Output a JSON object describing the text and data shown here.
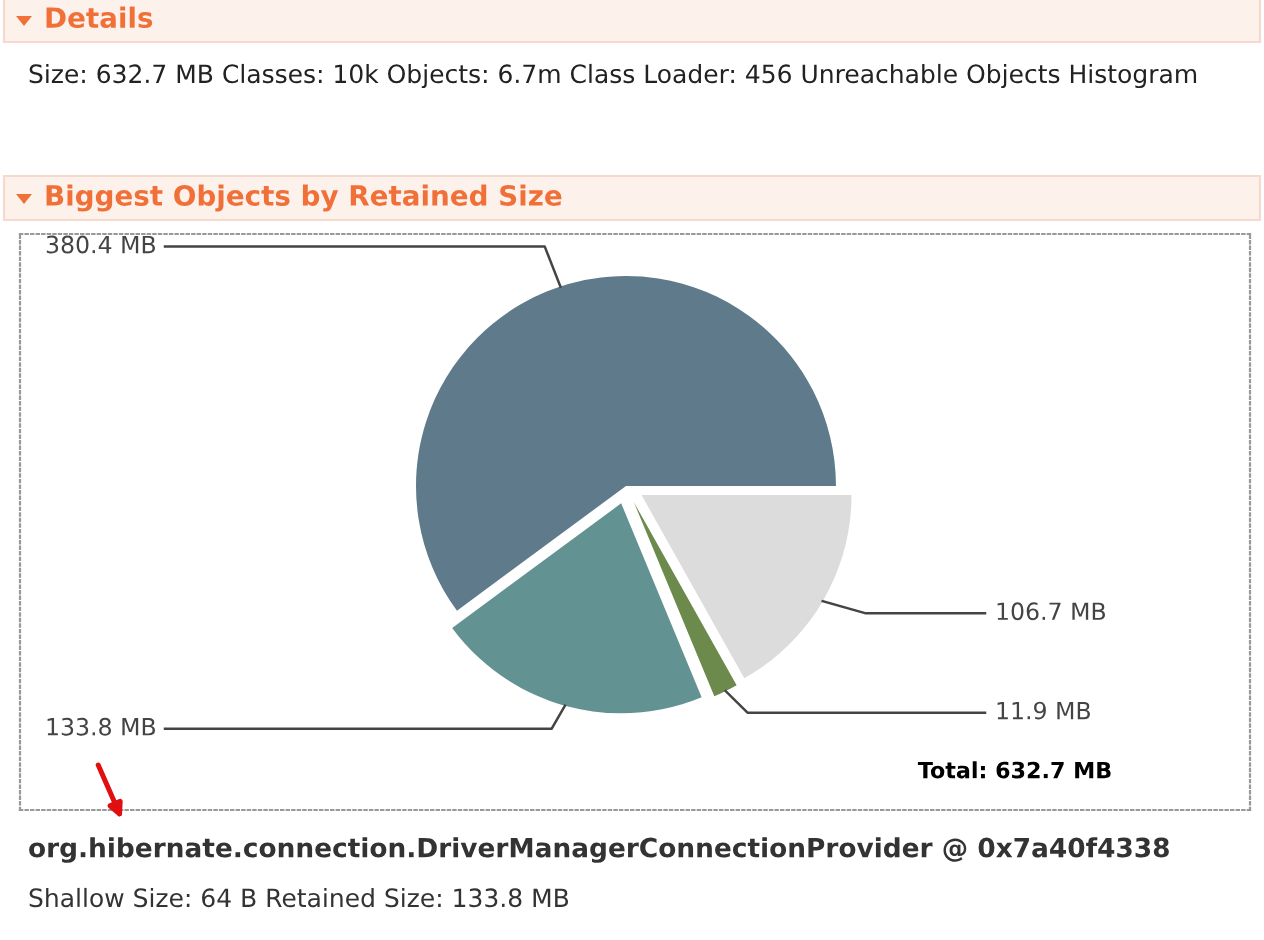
{
  "chart_data": {
    "type": "pie",
    "title": "Biggest Objects by Retained Size",
    "categories": [
      null,
      null,
      null,
      null
    ],
    "values": [
      380.4,
      133.8,
      11.9,
      106.7
    ],
    "colors": [
      "#5f7b8b",
      "#629292",
      "#6b8a4b",
      "#dcdcdc"
    ],
    "value_labels": [
      "380.4 MB",
      "133.8 MB",
      "11.9 MB",
      "106.7 MB"
    ],
    "annotations": [
      "Details",
      "Size: 632.7 MB Classes: 10k Objects: 6.7m Class Loader: 456 Unreachable Objects Histogram",
      "Total: 632.7 MB",
      "org.hibernate.connection.DriverManagerConnectionProvider @ 0x7a40f4338",
      "Shallow Size: 64 B Retained Size: 133.8 MB"
    ]
  }
}
